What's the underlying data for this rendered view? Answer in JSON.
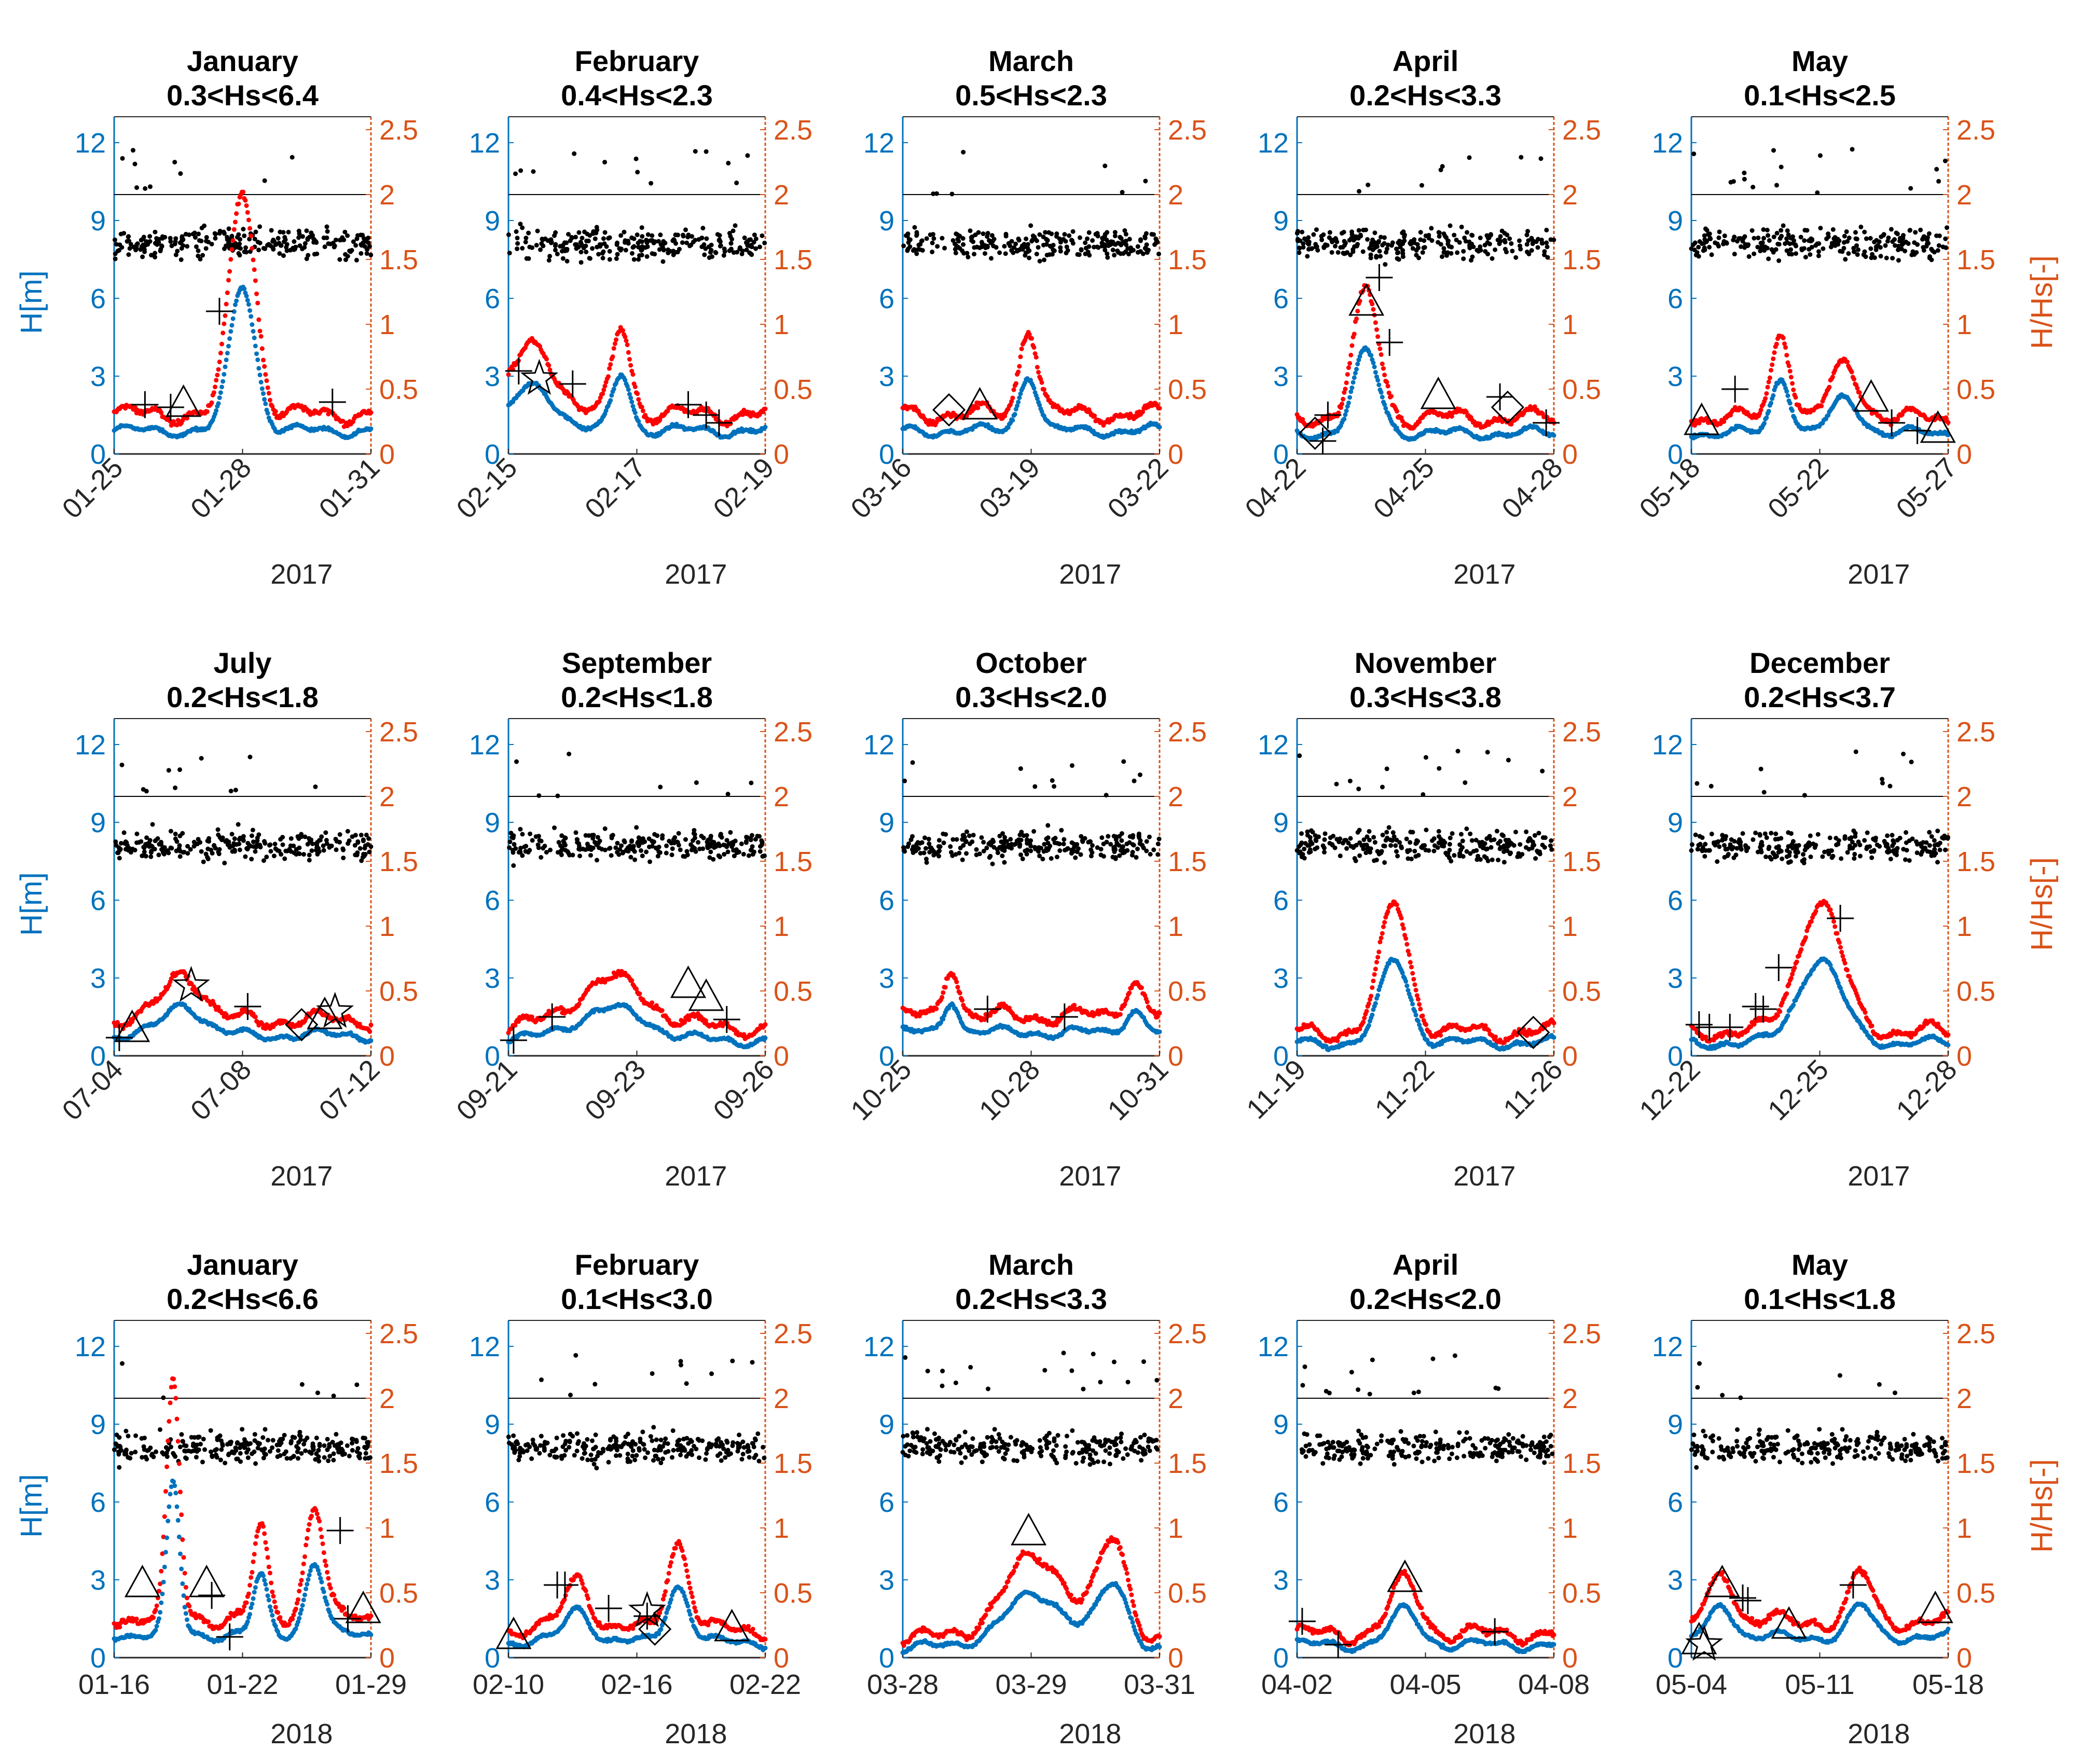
{
  "figure": {
    "left_axis_label": "H[m]",
    "right_axis_label": "H/Hs[-]",
    "colors": {
      "blue": "#0072BD",
      "red": "#FF0000",
      "orange": "#D95319",
      "black": "#000000"
    }
  },
  "chart_data": [
    {
      "type": "scatter",
      "title": "January",
      "subtitle": "0.3<Hs<6.4",
      "year": "2017",
      "xticks": [
        "01-25",
        "01-28",
        "01-31"
      ],
      "yleft_ticks": [
        "0",
        "3",
        "6",
        "9",
        "12"
      ],
      "yright_ticks": [
        "0",
        "0.5",
        "1",
        "1.5",
        "2",
        "2.5"
      ],
      "yleft_lim": [
        0,
        13
      ],
      "yright_lim": [
        0,
        2.6
      ],
      "hs_range": [
        0.3,
        6.4
      ],
      "peaks": [
        {
          "pos": 0.5,
          "height": 5.6,
          "width": 0.07
        }
      ],
      "base_h": 0.9,
      "markers": [
        {
          "type": "plus",
          "x": 0.12,
          "y": 1.9
        },
        {
          "type": "plus",
          "x": 0.22,
          "y": 1.8
        },
        {
          "type": "triangle",
          "x": 0.27,
          "y": 1.9
        },
        {
          "type": "plus",
          "x": 0.41,
          "y": 5.5
        },
        {
          "type": "plus",
          "x": 0.85,
          "y": 2.0
        }
      ]
    },
    {
      "type": "scatter",
      "title": "February",
      "subtitle": "0.4<Hs<2.3",
      "year": "2017",
      "xticks": [
        "02-15",
        "02-17",
        "02-19"
      ],
      "yleft_ticks": [
        "0",
        "3",
        "6",
        "9",
        "12"
      ],
      "yright_ticks": [
        "0",
        "0.5",
        "1",
        "1.5",
        "2",
        "2.5"
      ],
      "yleft_lim": [
        0,
        13
      ],
      "yright_lim": [
        0,
        2.6
      ],
      "hs_range": [
        0.4,
        2.3
      ],
      "peaks": [
        {
          "pos": 0.1,
          "height": 1.7,
          "width": 0.12
        },
        {
          "pos": 0.44,
          "height": 2.2,
          "width": 0.05
        }
      ],
      "base_h": 0.9,
      "markers": [
        {
          "type": "plus",
          "x": 0.04,
          "y": 3.2
        },
        {
          "type": "star",
          "x": 0.12,
          "y": 2.9
        },
        {
          "type": "plus",
          "x": 0.25,
          "y": 2.7
        },
        {
          "type": "plus",
          "x": 0.7,
          "y": 1.9
        },
        {
          "type": "plus",
          "x": 0.77,
          "y": 1.5
        },
        {
          "type": "plus",
          "x": 0.82,
          "y": 1.2
        }
      ]
    },
    {
      "type": "scatter",
      "title": "March",
      "subtitle": "0.5<Hs<2.3",
      "year": "2017",
      "xticks": [
        "03-16",
        "03-19",
        "03-22"
      ],
      "yleft_ticks": [
        "0",
        "3",
        "6",
        "9",
        "12"
      ],
      "yright_ticks": [
        "0",
        "0.5",
        "1",
        "1.5",
        "2",
        "2.5"
      ],
      "yleft_lim": [
        0,
        13
      ],
      "yright_lim": [
        0,
        2.6
      ],
      "hs_range": [
        0.5,
        2.3
      ],
      "peaks": [
        {
          "pos": 0.49,
          "height": 2.2,
          "width": 0.05
        }
      ],
      "base_h": 0.9,
      "markers": [
        {
          "type": "diamond",
          "x": 0.18,
          "y": 1.7
        },
        {
          "type": "triangle",
          "x": 0.3,
          "y": 1.8
        }
      ]
    },
    {
      "type": "scatter",
      "title": "April",
      "subtitle": "0.2<Hs<3.3",
      "year": "2017",
      "xticks": [
        "04-22",
        "04-25",
        "04-28"
      ],
      "yleft_ticks": [
        "0",
        "3",
        "6",
        "9",
        "12"
      ],
      "yright_ticks": [
        "0",
        "0.5",
        "1",
        "1.5",
        "2",
        "2.5"
      ],
      "yleft_lim": [
        0,
        13
      ],
      "yright_lim": [
        0,
        2.6
      ],
      "hs_range": [
        0.2,
        3.3
      ],
      "peaks": [
        {
          "pos": 0.27,
          "height": 3.1,
          "width": 0.07
        }
      ],
      "base_h": 0.8,
      "markers": [
        {
          "type": "diamond",
          "x": 0.07,
          "y": 0.8
        },
        {
          "type": "plus",
          "x": 0.1,
          "y": 0.5
        },
        {
          "type": "plus",
          "x": 0.12,
          "y": 1.5
        },
        {
          "type": "triangle",
          "x": 0.27,
          "y": 5.8
        },
        {
          "type": "plus",
          "x": 0.32,
          "y": 6.8
        },
        {
          "type": "plus",
          "x": 0.36,
          "y": 4.3
        },
        {
          "type": "triangle",
          "x": 0.55,
          "y": 2.2
        },
        {
          "type": "plus",
          "x": 0.79,
          "y": 2.2
        },
        {
          "type": "diamond",
          "x": 0.82,
          "y": 1.8
        },
        {
          "type": "plus",
          "x": 0.97,
          "y": 1.2
        }
      ]
    },
    {
      "type": "scatter",
      "title": "May",
      "subtitle": "0.1<Hs<2.5",
      "year": "2017",
      "xticks": [
        "05-18",
        "05-22",
        "05-27"
      ],
      "yleft_ticks": [
        "0",
        "3",
        "6",
        "9",
        "12"
      ],
      "yright_ticks": [
        "0",
        "0.5",
        "1",
        "1.5",
        "2",
        "2.5"
      ],
      "yleft_lim": [
        0,
        13
      ],
      "yright_lim": [
        0,
        2.6
      ],
      "hs_range": [
        0.1,
        2.5
      ],
      "peaks": [
        {
          "pos": 0.35,
          "height": 2.2,
          "width": 0.05
        },
        {
          "pos": 0.6,
          "height": 1.3,
          "width": 0.08
        }
      ],
      "base_h": 0.8,
      "markers": [
        {
          "type": "triangle",
          "x": 0.04,
          "y": 1.2
        },
        {
          "type": "plus",
          "x": 0.17,
          "y": 2.5
        },
        {
          "type": "triangle",
          "x": 0.7,
          "y": 2.1
        },
        {
          "type": "plus",
          "x": 0.78,
          "y": 1.2
        },
        {
          "type": "plus",
          "x": 0.88,
          "y": 0.9
        },
        {
          "type": "triangle",
          "x": 0.96,
          "y": 0.9
        }
      ]
    },
    {
      "type": "scatter",
      "title": "July",
      "subtitle": "0.2<Hs<1.8",
      "year": "2017",
      "xticks": [
        "07-04",
        "07-08",
        "07-12"
      ],
      "yleft_ticks": [
        "0",
        "3",
        "6",
        "9",
        "12"
      ],
      "yright_ticks": [
        "0",
        "0.5",
        "1",
        "1.5",
        "2",
        "2.5"
      ],
      "yleft_lim": [
        0,
        13
      ],
      "yright_lim": [
        0,
        2.6
      ],
      "hs_range": [
        0.2,
        1.8
      ],
      "peaks": [
        {
          "pos": 0.27,
          "height": 1.2,
          "width": 0.1
        }
      ],
      "base_h": 0.8,
      "markers": [
        {
          "type": "plus",
          "x": 0.02,
          "y": 0.7
        },
        {
          "type": "triangle",
          "x": 0.07,
          "y": 1.0
        },
        {
          "type": "star",
          "x": 0.3,
          "y": 2.7
        },
        {
          "type": "plus",
          "x": 0.52,
          "y": 1.9
        },
        {
          "type": "diamond",
          "x": 0.73,
          "y": 1.2
        },
        {
          "type": "triangle",
          "x": 0.82,
          "y": 1.5
        },
        {
          "type": "star",
          "x": 0.86,
          "y": 1.7
        }
      ]
    },
    {
      "type": "scatter",
      "title": "September",
      "subtitle": "0.2<Hs<1.8",
      "year": "2017",
      "xticks": [
        "09-21",
        "09-23",
        "09-26"
      ],
      "yleft_ticks": [
        "0",
        "3",
        "6",
        "9",
        "12"
      ],
      "yright_ticks": [
        "0",
        "0.5",
        "1",
        "1.5",
        "2",
        "2.5"
      ],
      "yleft_lim": [
        0,
        13
      ],
      "yright_lim": [
        0,
        2.6
      ],
      "hs_range": [
        0.2,
        1.8
      ],
      "peaks": [
        {
          "pos": 0.4,
          "height": 1.2,
          "width": 0.2
        }
      ],
      "base_h": 0.6,
      "markers": [
        {
          "type": "plus",
          "x": 0.02,
          "y": 0.6
        },
        {
          "type": "plus",
          "x": 0.17,
          "y": 1.5
        },
        {
          "type": "triangle",
          "x": 0.7,
          "y": 2.7
        },
        {
          "type": "triangle",
          "x": 0.77,
          "y": 2.2
        },
        {
          "type": "plus",
          "x": 0.85,
          "y": 1.4
        }
      ]
    },
    {
      "type": "scatter",
      "title": "October",
      "subtitle": "0.3<Hs<2.0",
      "year": "2017",
      "xticks": [
        "10-25",
        "10-28",
        "10-31"
      ],
      "yleft_ticks": [
        "0",
        "3",
        "6",
        "9",
        "12"
      ],
      "yright_ticks": [
        "0",
        "0.5",
        "1",
        "1.5",
        "2",
        "2.5"
      ],
      "yleft_lim": [
        0,
        13
      ],
      "yright_lim": [
        0,
        2.6
      ],
      "hs_range": [
        0.3,
        2.0
      ],
      "peaks": [
        {
          "pos": 0.19,
          "height": 1.3,
          "width": 0.04
        },
        {
          "pos": 0.9,
          "height": 0.9,
          "width": 0.05
        }
      ],
      "base_h": 0.9,
      "markers": [
        {
          "type": "plus",
          "x": 0.33,
          "y": 1.8
        },
        {
          "type": "plus",
          "x": 0.63,
          "y": 1.5
        }
      ]
    },
    {
      "type": "scatter",
      "title": "November",
      "subtitle": "0.3<Hs<3.8",
      "year": "2017",
      "xticks": [
        "11-19",
        "11-22",
        "11-26"
      ],
      "yleft_ticks": [
        "0",
        "3",
        "6",
        "9",
        "12"
      ],
      "yright_ticks": [
        "0",
        "0.5",
        "1",
        "1.5",
        "2",
        "2.5"
      ],
      "yleft_lim": [
        0,
        13
      ],
      "yright_lim": [
        0,
        2.6
      ],
      "hs_range": [
        0.3,
        3.8
      ],
      "peaks": [
        {
          "pos": 0.38,
          "height": 3.2,
          "width": 0.08
        }
      ],
      "base_h": 0.5,
      "markers": [
        {
          "type": "diamond",
          "x": 0.92,
          "y": 0.9
        }
      ]
    },
    {
      "type": "scatter",
      "title": "December",
      "subtitle": "0.2<Hs<3.7",
      "year": "2017",
      "xticks": [
        "12-22",
        "12-25",
        "12-28"
      ],
      "yleft_ticks": [
        "0",
        "3",
        "6",
        "9",
        "12"
      ],
      "yright_ticks": [
        "0",
        "0.5",
        "1",
        "1.5",
        "2",
        "2.5"
      ],
      "yleft_lim": [
        0,
        13
      ],
      "yright_lim": [
        0,
        2.6
      ],
      "hs_range": [
        0.2,
        3.7
      ],
      "peaks": [
        {
          "pos": 0.5,
          "height": 3.2,
          "width": 0.12
        }
      ],
      "base_h": 0.5,
      "markers": [
        {
          "type": "plus",
          "x": 0.03,
          "y": 1.2
        },
        {
          "type": "plus",
          "x": 0.07,
          "y": 1.1
        },
        {
          "type": "plus",
          "x": 0.15,
          "y": 1.1
        },
        {
          "type": "plus",
          "x": 0.25,
          "y": 1.9
        },
        {
          "type": "plus",
          "x": 0.28,
          "y": 1.8
        },
        {
          "type": "plus",
          "x": 0.34,
          "y": 3.4
        },
        {
          "type": "plus",
          "x": 0.58,
          "y": 5.3
        }
      ]
    },
    {
      "type": "scatter",
      "title": "January",
      "subtitle": "0.2<Hs<6.6",
      "year": "2018",
      "xticks": [
        "01-16",
        "01-22",
        "01-29"
      ],
      "yleft_ticks": [
        "0",
        "3",
        "6",
        "9",
        "12"
      ],
      "yright_ticks": [
        "0",
        "0.5",
        "1",
        "1.5",
        "2",
        "2.5"
      ],
      "yleft_lim": [
        0,
        13
      ],
      "yright_lim": [
        0,
        2.6
      ],
      "hs_range": [
        0.2,
        6.6
      ],
      "peaks": [
        {
          "pos": 0.23,
          "height": 5.8,
          "width": 0.035
        },
        {
          "pos": 0.57,
          "height": 2.2,
          "width": 0.04
        },
        {
          "pos": 0.78,
          "height": 2.8,
          "width": 0.05
        }
      ],
      "base_h": 0.9,
      "markers": [
        {
          "type": "triangle",
          "x": 0.11,
          "y": 2.8
        },
        {
          "type": "triangle",
          "x": 0.36,
          "y": 2.8
        },
        {
          "type": "plus",
          "x": 0.38,
          "y": 2.4
        },
        {
          "type": "plus",
          "x": 0.45,
          "y": 0.8
        },
        {
          "type": "plus",
          "x": 0.88,
          "y": 4.9
        },
        {
          "type": "plus",
          "x": 0.91,
          "y": 1.5
        },
        {
          "type": "triangle",
          "x": 0.97,
          "y": 1.8
        }
      ]
    },
    {
      "type": "scatter",
      "title": "February",
      "subtitle": "0.1<Hs<3.0",
      "year": "2018",
      "xticks": [
        "02-10",
        "02-16",
        "02-22"
      ],
      "yleft_ticks": [
        "0",
        "3",
        "6",
        "9",
        "12"
      ],
      "yright_ticks": [
        "0",
        "0.5",
        "1",
        "1.5",
        "2",
        "2.5"
      ],
      "yleft_lim": [
        0,
        13
      ],
      "yright_lim": [
        0,
        2.6
      ],
      "hs_range": [
        0.1,
        3.0
      ],
      "peaks": [
        {
          "pos": 0.27,
          "height": 1.3,
          "width": 0.07
        },
        {
          "pos": 0.66,
          "height": 2.2,
          "width": 0.06
        }
      ],
      "base_h": 0.6,
      "markers": [
        {
          "type": "triangle",
          "x": 0.02,
          "y": 0.8
        },
        {
          "type": "plus",
          "x": 0.19,
          "y": 2.8
        },
        {
          "type": "plus",
          "x": 0.22,
          "y": 2.8
        },
        {
          "type": "plus",
          "x": 0.39,
          "y": 1.9
        },
        {
          "type": "star",
          "x": 0.54,
          "y": 1.8
        },
        {
          "type": "plus",
          "x": 0.54,
          "y": 1.6
        },
        {
          "type": "diamond",
          "x": 0.57,
          "y": 1.1
        },
        {
          "type": "triangle",
          "x": 0.87,
          "y": 1.1
        }
      ]
    },
    {
      "type": "scatter",
      "title": "March",
      "subtitle": "0.2<Hs<3.3",
      "year": "2018",
      "xticks": [
        "03-28",
        "03-29",
        "03-31"
      ],
      "yleft_ticks": [
        "0",
        "3",
        "6",
        "9",
        "12"
      ],
      "yright_ticks": [
        "0",
        "0.5",
        "1",
        "1.5",
        "2",
        "2.5"
      ],
      "yleft_lim": [
        0,
        13
      ],
      "yright_lim": [
        0,
        2.6
      ],
      "hs_range": [
        0.2,
        3.3
      ],
      "peaks": [
        {
          "pos": 0.52,
          "height": 2.0,
          "width": 0.18
        },
        {
          "pos": 0.82,
          "height": 2.3,
          "width": 0.08
        }
      ],
      "base_h": 0.4,
      "markers": [
        {
          "type": "triangle",
          "x": 0.49,
          "y": 4.8
        }
      ]
    },
    {
      "type": "scatter",
      "title": "April",
      "subtitle": "0.2<Hs<2.0",
      "year": "2018",
      "xticks": [
        "04-02",
        "04-05",
        "04-08"
      ],
      "yleft_ticks": [
        "0",
        "3",
        "6",
        "9",
        "12"
      ],
      "yright_ticks": [
        "0",
        "0.5",
        "1",
        "1.5",
        "2",
        "2.5"
      ],
      "yleft_lim": [
        0,
        13
      ],
      "yright_lim": [
        0,
        2.6
      ],
      "hs_range": [
        0.2,
        2.0
      ],
      "peaks": [
        {
          "pos": 0.42,
          "height": 1.3,
          "width": 0.08
        }
      ],
      "base_h": 0.5,
      "markers": [
        {
          "type": "plus",
          "x": 0.02,
          "y": 1.4
        },
        {
          "type": "plus",
          "x": 0.16,
          "y": 0.5
        },
        {
          "type": "triangle",
          "x": 0.42,
          "y": 3.0
        },
        {
          "type": "plus",
          "x": 0.77,
          "y": 1.0
        }
      ]
    },
    {
      "type": "scatter",
      "title": "May",
      "subtitle": "0.1<Hs<1.8",
      "year": "2018",
      "xticks": [
        "05-04",
        "05-11",
        "05-18"
      ],
      "yleft_ticks": [
        "0",
        "3",
        "6",
        "9",
        "12"
      ],
      "yright_ticks": [
        "0",
        "0.5",
        "1",
        "1.5",
        "2",
        "2.5"
      ],
      "yleft_lim": [
        0,
        13
      ],
      "yright_lim": [
        0,
        2.6
      ],
      "hs_range": [
        0.1,
        1.8
      ],
      "peaks": [
        {
          "pos": 0.12,
          "height": 1.3,
          "width": 0.06
        },
        {
          "pos": 0.66,
          "height": 1.2,
          "width": 0.06
        }
      ],
      "base_h": 0.8,
      "markers": [
        {
          "type": "triangle",
          "x": 0.03,
          "y": 0.6
        },
        {
          "type": "star",
          "x": 0.05,
          "y": 0.5
        },
        {
          "type": "triangle",
          "x": 0.12,
          "y": 2.8
        },
        {
          "type": "plus",
          "x": 0.2,
          "y": 2.3
        },
        {
          "type": "plus",
          "x": 0.22,
          "y": 2.2
        },
        {
          "type": "triangle",
          "x": 0.38,
          "y": 1.2
        },
        {
          "type": "plus",
          "x": 0.63,
          "y": 2.8
        },
        {
          "type": "triangle",
          "x": 0.95,
          "y": 1.8
        }
      ]
    }
  ]
}
